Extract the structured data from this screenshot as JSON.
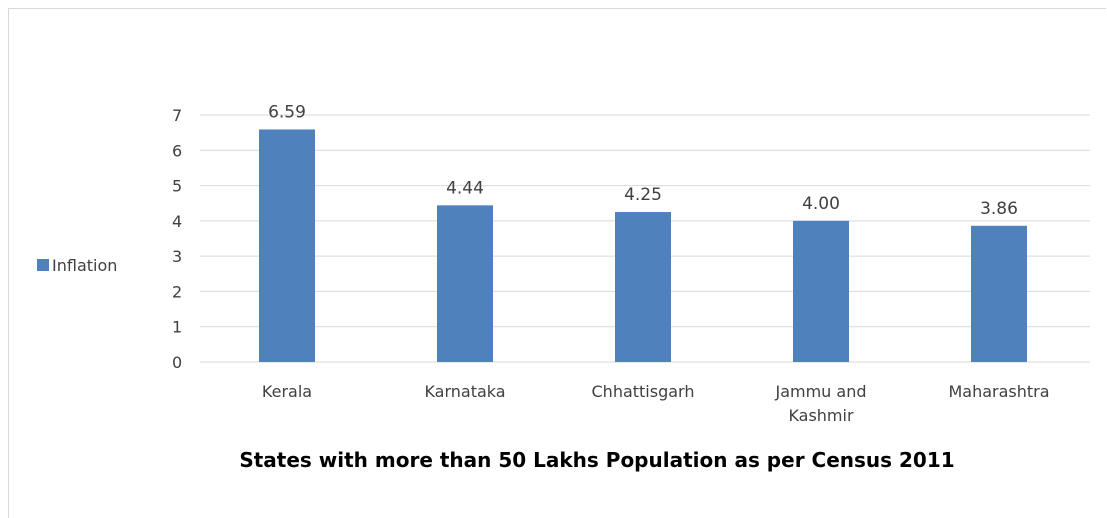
{
  "chart_data": {
    "type": "bar",
    "categories": [
      [
        "Kerala"
      ],
      [
        "Karnataka"
      ],
      [
        "Chhattisgarh"
      ],
      [
        "Jammu and",
        "Kashmir"
      ],
      [
        "Maharashtra"
      ]
    ],
    "series": [
      {
        "name": "Inflation",
        "values": [
          6.59,
          4.44,
          4.25,
          4.0,
          3.86
        ],
        "data_labels": [
          "6.59",
          "4.44",
          "4.25",
          "4.00",
          "3.86"
        ],
        "color": "#4f81bd"
      }
    ],
    "title": "States with more than 50 Lakhs Population as per Census 2011",
    "xlabel": "",
    "ylabel": "",
    "ylim": [
      0,
      7
    ],
    "yticks": [
      0,
      1,
      2,
      3,
      4,
      5,
      6,
      7
    ],
    "grid": true,
    "legend_position": "left",
    "colors": {
      "bar": "#4f81bd",
      "grid": "#d9d9d9",
      "text": "#404040"
    }
  }
}
